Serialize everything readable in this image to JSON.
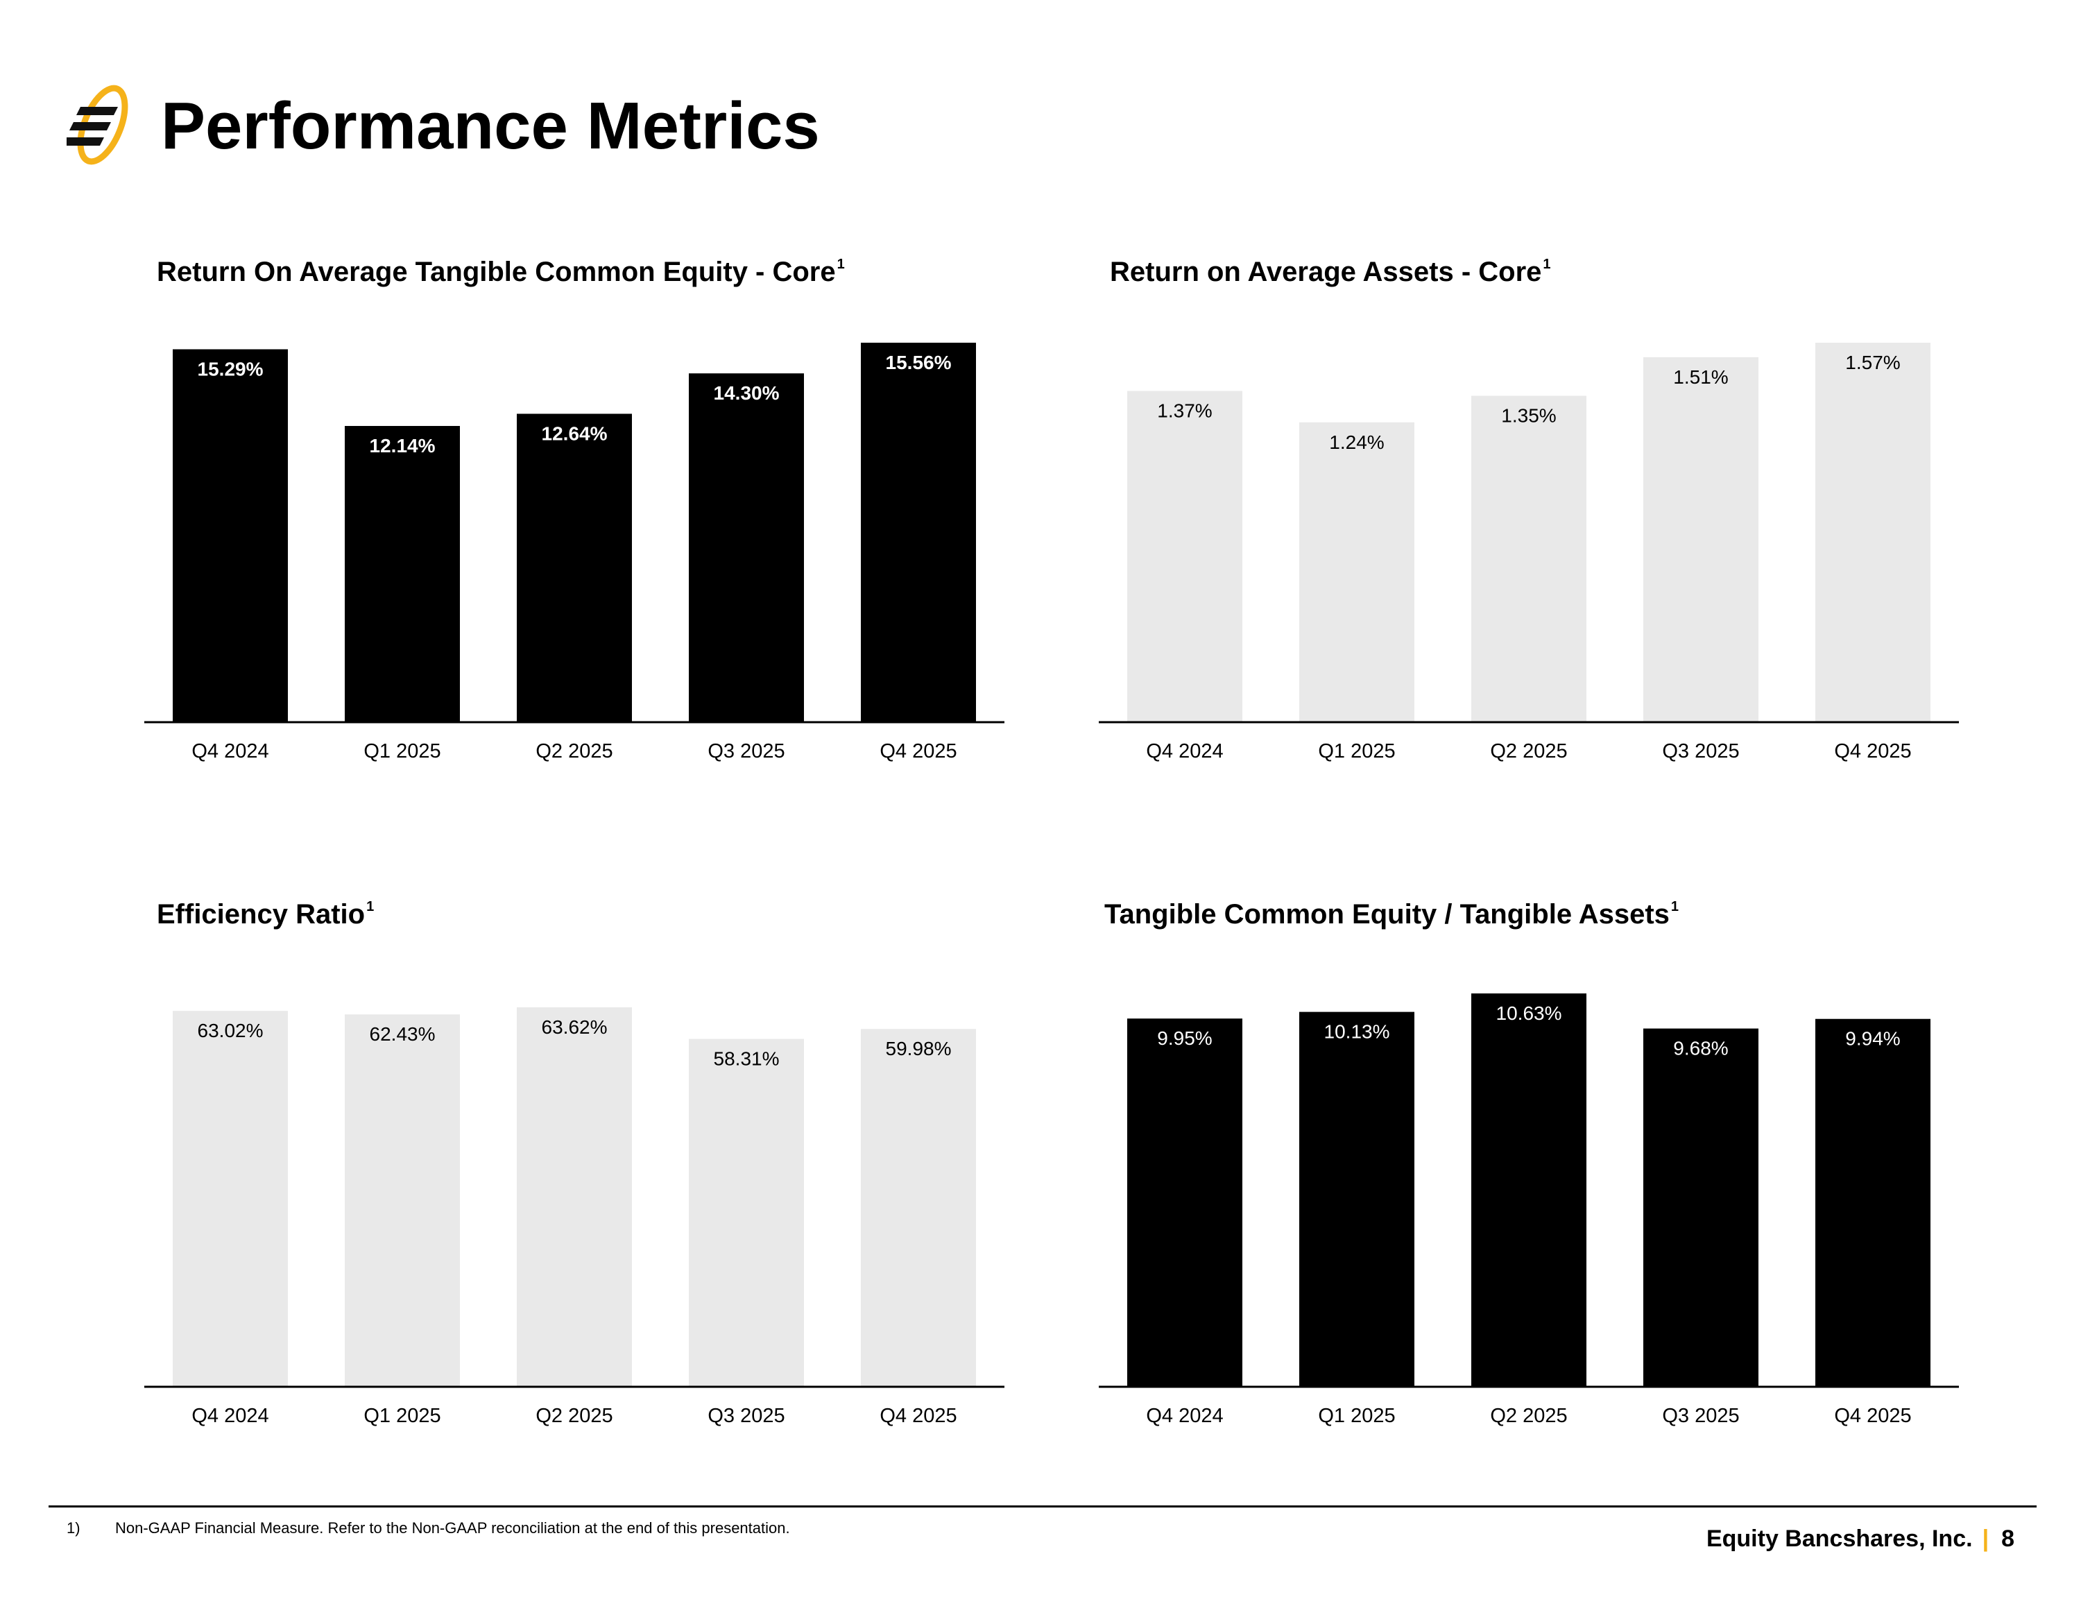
{
  "page": {
    "title": "Performance Metrics",
    "colors": {
      "accent": "#f5b21a",
      "dark_bar": "#000000",
      "light_bar": "#e9e9e9"
    }
  },
  "chart_data": [
    {
      "type": "bar",
      "title": "Return On Average Tangible Common Equity - Core",
      "title_note": "1",
      "categories": [
        "Q4 2024",
        "Q1 2025",
        "Q2 2025",
        "Q3 2025",
        "Q4 2025"
      ],
      "values": [
        15.29,
        12.14,
        12.64,
        14.3,
        15.56
      ],
      "labels": [
        "15.29%",
        "12.14%",
        "12.64%",
        "14.30%",
        "15.56%"
      ],
      "ylim": [
        0,
        15.56
      ],
      "bar_color": "#000000",
      "label_color": "#ffffff",
      "label_bold": true,
      "grid": false
    },
    {
      "type": "bar",
      "title": "Return on Average Assets - Core",
      "title_note": "1",
      "categories": [
        "Q4 2024",
        "Q1 2025",
        "Q2 2025",
        "Q3 2025",
        "Q4 2025"
      ],
      "values": [
        1.37,
        1.24,
        1.35,
        1.51,
        1.57
      ],
      "labels": [
        "1.37%",
        "1.24%",
        "1.35%",
        "1.51%",
        "1.57%"
      ],
      "ylim": [
        0,
        1.57
      ],
      "bar_color": "#e9e9e9",
      "label_color": "#000000",
      "label_bold": false,
      "grid": false
    },
    {
      "type": "bar",
      "title": "Efficiency Ratio",
      "title_note": "1",
      "categories": [
        "Q4 2024",
        "Q1 2025",
        "Q2 2025",
        "Q3 2025",
        "Q4 2025"
      ],
      "values": [
        63.02,
        62.43,
        63.62,
        58.31,
        59.98
      ],
      "labels": [
        "63.02%",
        "62.43%",
        "63.62%",
        "58.31%",
        "59.98%"
      ],
      "ylim": [
        0,
        63.62
      ],
      "bar_color": "#e9e9e9",
      "label_color": "#000000",
      "label_bold": false,
      "grid": false
    },
    {
      "type": "bar",
      "title": "Tangible Common Equity / Tangible Assets",
      "title_note": "1",
      "categories": [
        "Q4 2024",
        "Q1 2025",
        "Q2 2025",
        "Q3 2025",
        "Q4 2025"
      ],
      "values": [
        9.95,
        10.13,
        10.63,
        9.68,
        9.94
      ],
      "labels": [
        "9.95%",
        "10.13%",
        "10.63%",
        "9.68%",
        "9.94%"
      ],
      "ylim": [
        0,
        10.63
      ],
      "bar_color": "#000000",
      "label_color": "#ffffff",
      "label_bold": false,
      "grid": false
    }
  ],
  "footer": {
    "note_number": "1)",
    "note_text": "Non-GAAP Financial Measure. Refer to the Non-GAAP reconciliation at the end of this presentation.",
    "company": "Equity Bancshares, Inc.",
    "separator": "|",
    "page_number": "8"
  }
}
